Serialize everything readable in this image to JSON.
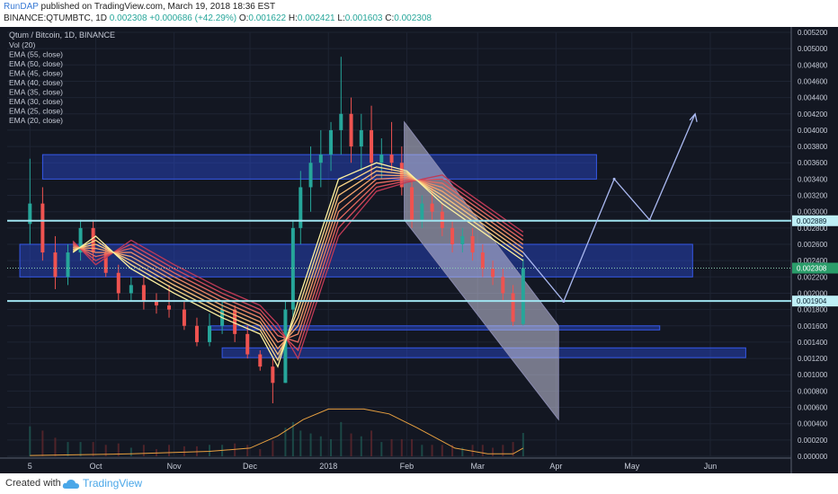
{
  "header": {
    "author": "RunDAP",
    "published": "published on TradingView.com, March 19, 2018 18:36 EST",
    "symbol": "BINANCE:QTUMBTC, 1D",
    "last": "0.002308",
    "change": "+0.000686 (+42.29%)",
    "o_label": "O:",
    "o_value": "0.001622",
    "h_label": "H:",
    "h_value": "0.002421",
    "l_label": "L:",
    "l_value": "0.001603",
    "c_label": "C:",
    "c_value": "0.002308"
  },
  "footer": {
    "created_with": "Created with",
    "brand": "TradingView"
  },
  "colors": {
    "background": "#131722",
    "bull": "#26a69a",
    "bear": "#ef5350",
    "zone": "#2b4bd6",
    "support": "#9fe3f0",
    "volume_ema": "#e8a040",
    "channel": "#c8c8e0"
  },
  "chart_data": {
    "type": "candlestick",
    "title": "Qtum / Bitcoin, 1D, BINANCE",
    "legend": [
      "Vol (20)",
      "EMA (55, close)",
      "EMA (50, close)",
      "EMA (45, close)",
      "EMA (40, close)",
      "EMA (35, close)",
      "EMA (30, close)",
      "EMA (25, close)",
      "EMA (20, close)"
    ],
    "x_ticks": [
      "5",
      "Oct",
      "Nov",
      "Dec",
      "2018",
      "Feb",
      "Mar",
      "Apr",
      "May",
      "Jun"
    ],
    "y_ticks": [
      "0.005200",
      "0.005000",
      "0.004800",
      "0.004600",
      "0.004400",
      "0.004200",
      "0.004000",
      "0.003800",
      "0.003600",
      "0.003400",
      "0.003200",
      "0.003000",
      "0.002800",
      "0.002600",
      "0.002400",
      "0.002200",
      "0.002000",
      "0.001800",
      "0.001600",
      "0.001400",
      "0.001200",
      "0.001000",
      "0.000800",
      "0.000600",
      "0.000400",
      "0.000200",
      "0.000000"
    ],
    "ylim": [
      0,
      0.0052
    ],
    "price_labels": [
      {
        "value": 0.002889,
        "text": "0.002889",
        "style": "line"
      },
      {
        "value": 0.002308,
        "text": "0.002308",
        "style": "last"
      },
      {
        "value": 0.001904,
        "text": "0.001904",
        "style": "line"
      }
    ],
    "candles": [
      [
        "2017-09-05",
        0.00285,
        0.00365,
        0.0026,
        0.0031
      ],
      [
        "2017-09-10",
        0.0031,
        0.0033,
        0.0024,
        0.0025
      ],
      [
        "2017-09-15",
        0.0025,
        0.0027,
        0.00205,
        0.0022
      ],
      [
        "2017-09-20",
        0.0022,
        0.0026,
        0.0021,
        0.0025
      ],
      [
        "2017-09-25",
        0.0025,
        0.0029,
        0.0024,
        0.0028
      ],
      [
        "2017-09-30",
        0.0028,
        0.0029,
        0.0024,
        0.0025
      ],
      [
        "2017-10-05",
        0.0025,
        0.0026,
        0.0022,
        0.00225
      ],
      [
        "2017-10-10",
        0.00225,
        0.00235,
        0.0019,
        0.002
      ],
      [
        "2017-10-15",
        0.002,
        0.0022,
        0.0019,
        0.0021
      ],
      [
        "2017-10-20",
        0.0021,
        0.0022,
        0.0018,
        0.0019
      ],
      [
        "2017-10-25",
        0.0019,
        0.002,
        0.00175,
        0.00185
      ],
      [
        "2017-10-30",
        0.00185,
        0.0021,
        0.0017,
        0.0018
      ],
      [
        "2017-11-05",
        0.0018,
        0.0019,
        0.00155,
        0.0016
      ],
      [
        "2017-11-10",
        0.0016,
        0.0017,
        0.00135,
        0.0014
      ],
      [
        "2017-11-15",
        0.0014,
        0.00175,
        0.00135,
        0.0016
      ],
      [
        "2017-11-20",
        0.0016,
        0.0019,
        0.0015,
        0.0018
      ],
      [
        "2017-11-25",
        0.0018,
        0.00185,
        0.0014,
        0.0015
      ],
      [
        "2017-11-30",
        0.0015,
        0.0016,
        0.0012,
        0.00125
      ],
      [
        "2017-12-05",
        0.00125,
        0.0013,
        0.00105,
        0.0011
      ],
      [
        "2017-12-10",
        0.0011,
        0.0012,
        0.00065,
        0.0009
      ],
      [
        "2017-12-15",
        0.0009,
        0.0019,
        0.0009,
        0.0018
      ],
      [
        "2017-12-18",
        0.0018,
        0.0029,
        0.0017,
        0.0028
      ],
      [
        "2017-12-21",
        0.0028,
        0.0035,
        0.0026,
        0.0033
      ],
      [
        "2017-12-25",
        0.0033,
        0.0038,
        0.003,
        0.0036
      ],
      [
        "2017-12-29",
        0.0036,
        0.004,
        0.0033,
        0.0037
      ],
      [
        "2018-01-02",
        0.0037,
        0.0041,
        0.0035,
        0.004
      ],
      [
        "2018-01-06",
        0.004,
        0.0049,
        0.0037,
        0.0042
      ],
      [
        "2018-01-10",
        0.0042,
        0.0044,
        0.0036,
        0.0038
      ],
      [
        "2018-01-14",
        0.0038,
        0.0042,
        0.0035,
        0.004
      ],
      [
        "2018-01-18",
        0.004,
        0.0043,
        0.0034,
        0.0036
      ],
      [
        "2018-01-22",
        0.0036,
        0.0039,
        0.0034,
        0.0037
      ],
      [
        "2018-01-26",
        0.0037,
        0.0041,
        0.0035,
        0.0036
      ],
      [
        "2018-01-30",
        0.0036,
        0.0038,
        0.0032,
        0.0033
      ],
      [
        "2018-02-03",
        0.0033,
        0.0034,
        0.0028,
        0.0029
      ],
      [
        "2018-02-07",
        0.0029,
        0.0032,
        0.0028,
        0.0031
      ],
      [
        "2018-02-11",
        0.0031,
        0.0033,
        0.0029,
        0.003
      ],
      [
        "2018-02-15",
        0.003,
        0.0031,
        0.0027,
        0.0028
      ],
      [
        "2018-02-19",
        0.0028,
        0.0029,
        0.0025,
        0.0026
      ],
      [
        "2018-02-23",
        0.0026,
        0.0028,
        0.0025,
        0.0027
      ],
      [
        "2018-02-27",
        0.0027,
        0.0028,
        0.0024,
        0.0025
      ],
      [
        "2018-03-03",
        0.0025,
        0.0026,
        0.0022,
        0.0023
      ],
      [
        "2018-03-07",
        0.0023,
        0.0024,
        0.0021,
        0.0022
      ],
      [
        "2018-03-11",
        0.0022,
        0.0023,
        0.0019,
        0.002
      ],
      [
        "2018-03-15",
        0.002,
        0.0021,
        0.0016,
        0.00165
      ],
      [
        "2018-03-19",
        0.001622,
        0.002421,
        0.001603,
        0.002308
      ]
    ],
    "ema": [
      {
        "name": "EMA (20, close)",
        "color": "#fff2a0",
        "points": [
          [
            "2017-09-22",
            0.0025
          ],
          [
            "2017-10-01",
            0.0027
          ],
          [
            "2017-10-15",
            0.0023
          ],
          [
            "2017-11-01",
            0.002
          ],
          [
            "2017-11-20",
            0.0017
          ],
          [
            "2017-12-05",
            0.0015
          ],
          [
            "2017-12-12",
            0.0011
          ],
          [
            "2017-12-20",
            0.0019
          ],
          [
            "2018-01-05",
            0.0034
          ],
          [
            "2018-01-20",
            0.0036
          ],
          [
            "2018-02-01",
            0.0035
          ],
          [
            "2018-02-15",
            0.0031
          ],
          [
            "2018-03-19",
            0.0024
          ]
        ]
      },
      {
        "name": "EMA (25, close)",
        "color": "#fdd98a",
        "points": [
          [
            "2017-09-22",
            0.00252
          ],
          [
            "2017-10-01",
            0.00265
          ],
          [
            "2017-10-15",
            0.00235
          ],
          [
            "2017-11-01",
            0.00205
          ],
          [
            "2017-11-20",
            0.00175
          ],
          [
            "2017-12-05",
            0.00155
          ],
          [
            "2017-12-12",
            0.00118
          ],
          [
            "2017-12-20",
            0.0018
          ],
          [
            "2018-01-05",
            0.0033
          ],
          [
            "2018-01-20",
            0.00355
          ],
          [
            "2018-02-01",
            0.00348
          ],
          [
            "2018-02-15",
            0.00315
          ],
          [
            "2018-03-19",
            0.00245
          ]
        ]
      },
      {
        "name": "EMA (30, close)",
        "color": "#fbbf7a",
        "points": [
          [
            "2017-09-22",
            0.00254
          ],
          [
            "2017-10-01",
            0.0026
          ],
          [
            "2017-10-15",
            0.0024
          ],
          [
            "2017-11-01",
            0.0021
          ],
          [
            "2017-11-20",
            0.0018
          ],
          [
            "2017-12-05",
            0.0016
          ],
          [
            "2017-12-12",
            0.00125
          ],
          [
            "2017-12-20",
            0.0017
          ],
          [
            "2018-01-05",
            0.0032
          ],
          [
            "2018-01-20",
            0.0035
          ],
          [
            "2018-02-01",
            0.00346
          ],
          [
            "2018-02-15",
            0.0032
          ],
          [
            "2018-03-19",
            0.0025
          ]
        ]
      },
      {
        "name": "EMA (35, close)",
        "color": "#f6a36e",
        "points": [
          [
            "2017-09-22",
            0.00256
          ],
          [
            "2017-10-01",
            0.00255
          ],
          [
            "2017-10-15",
            0.00245
          ],
          [
            "2017-11-01",
            0.00215
          ],
          [
            "2017-11-20",
            0.00185
          ],
          [
            "2017-12-05",
            0.00165
          ],
          [
            "2017-12-12",
            0.00132
          ],
          [
            "2017-12-20",
            0.0016
          ],
          [
            "2018-01-05",
            0.0031
          ],
          [
            "2018-01-20",
            0.00345
          ],
          [
            "2018-02-01",
            0.00344
          ],
          [
            "2018-02-15",
            0.00325
          ],
          [
            "2018-03-19",
            0.00255
          ]
        ]
      },
      {
        "name": "EMA (40, close)",
        "color": "#ef8766",
        "points": [
          [
            "2017-09-22",
            0.00258
          ],
          [
            "2017-10-01",
            0.0025
          ],
          [
            "2017-10-15",
            0.0025
          ],
          [
            "2017-11-01",
            0.0022
          ],
          [
            "2017-11-20",
            0.0019
          ],
          [
            "2017-12-05",
            0.0017
          ],
          [
            "2017-12-12",
            0.0014
          ],
          [
            "2017-12-20",
            0.0015
          ],
          [
            "2018-01-05",
            0.003
          ],
          [
            "2018-01-20",
            0.0034
          ],
          [
            "2018-02-01",
            0.00342
          ],
          [
            "2018-02-15",
            0.0033
          ],
          [
            "2018-03-19",
            0.0026
          ]
        ]
      },
      {
        "name": "EMA (45, close)",
        "color": "#e56a60",
        "points": [
          [
            "2017-09-22",
            0.0026
          ],
          [
            "2017-10-01",
            0.00245
          ],
          [
            "2017-10-15",
            0.00255
          ],
          [
            "2017-11-01",
            0.00225
          ],
          [
            "2017-11-20",
            0.00195
          ],
          [
            "2017-12-05",
            0.00175
          ],
          [
            "2017-12-12",
            0.00148
          ],
          [
            "2017-12-20",
            0.0014
          ],
          [
            "2018-01-05",
            0.0029
          ],
          [
            "2018-01-20",
            0.00335
          ],
          [
            "2018-02-01",
            0.0034
          ],
          [
            "2018-02-15",
            0.00335
          ],
          [
            "2018-03-19",
            0.00265
          ]
        ]
      },
      {
        "name": "EMA (50, close)",
        "color": "#d64c5a",
        "points": [
          [
            "2017-09-22",
            0.00262
          ],
          [
            "2017-10-01",
            0.0024
          ],
          [
            "2017-10-15",
            0.0026
          ],
          [
            "2017-11-01",
            0.0023
          ],
          [
            "2017-11-20",
            0.002
          ],
          [
            "2017-12-05",
            0.0018
          ],
          [
            "2017-12-12",
            0.00155
          ],
          [
            "2017-12-20",
            0.0013
          ],
          [
            "2018-01-05",
            0.0028
          ],
          [
            "2018-01-20",
            0.0033
          ],
          [
            "2018-02-01",
            0.00338
          ],
          [
            "2018-02-15",
            0.0034
          ],
          [
            "2018-03-19",
            0.0027
          ]
        ]
      },
      {
        "name": "EMA (55, close)",
        "color": "#c03a56",
        "points": [
          [
            "2017-09-22",
            0.00264
          ],
          [
            "2017-10-01",
            0.00235
          ],
          [
            "2017-10-15",
            0.00265
          ],
          [
            "2017-11-01",
            0.00235
          ],
          [
            "2017-11-20",
            0.00205
          ],
          [
            "2017-12-05",
            0.00185
          ],
          [
            "2017-12-12",
            0.00162
          ],
          [
            "2017-12-20",
            0.0012
          ],
          [
            "2018-01-05",
            0.0027
          ],
          [
            "2018-01-20",
            0.00325
          ],
          [
            "2018-02-01",
            0.00336
          ],
          [
            "2018-02-15",
            0.00345
          ],
          [
            "2018-03-19",
            0.00275
          ]
        ]
      }
    ],
    "volume_ema": [
      [
        "2017-09-05",
        1e-05
      ],
      [
        "2017-10-15",
        3e-05
      ],
      [
        "2017-11-15",
        6e-05
      ],
      [
        "2017-12-01",
        0.0001
      ],
      [
        "2017-12-12",
        0.00025
      ],
      [
        "2017-12-22",
        0.00045
      ],
      [
        "2018-01-01",
        0.00058
      ],
      [
        "2018-01-15",
        0.00058
      ],
      [
        "2018-01-25",
        0.00052
      ],
      [
        "2018-02-05",
        0.00035
      ],
      [
        "2018-02-20",
        0.0001
      ],
      [
        "2018-03-05",
        3e-05
      ],
      [
        "2018-03-15",
        3e-05
      ],
      [
        "2018-03-19",
        0.0001
      ]
    ],
    "zones": [
      {
        "from": "2017-09-10",
        "to": "2018-04-17",
        "low": 0.0034,
        "high": 0.0037
      },
      {
        "from": "2017-09-01",
        "to": "2018-05-25",
        "low": 0.0022,
        "high": 0.0026
      },
      {
        "from": "2017-11-15",
        "to": "2018-05-12",
        "low": 0.00155,
        "high": 0.0016
      },
      {
        "from": "2017-11-20",
        "to": "2018-06-15",
        "low": 0.00121,
        "high": 0.00133
      }
    ],
    "support_lines": [
      0.002889,
      0.001904
    ],
    "channel": {
      "upper": [
        [
          "2018-01-31",
          0.0041
        ],
        [
          "2018-04-02",
          0.0016
        ]
      ],
      "lower": [
        [
          "2018-01-31",
          0.0029
        ],
        [
          "2018-04-02",
          0.00045
        ]
      ]
    },
    "projection": [
      [
        "2018-03-19",
        0.0025
      ],
      [
        "2018-04-04",
        0.0019
      ],
      [
        "2018-04-24",
        0.0034
      ],
      [
        "2018-05-08",
        0.0029
      ],
      [
        "2018-05-26",
        0.0042
      ]
    ]
  }
}
